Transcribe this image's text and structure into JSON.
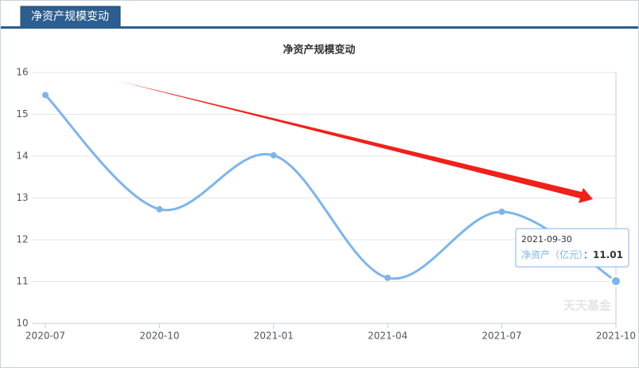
{
  "tab": "净资产规模变动",
  "watermark": "天天基金",
  "chart_data": {
    "type": "line",
    "title": "净资产规模变动",
    "categories": [
      "2020-07",
      "2020-10",
      "2021-01",
      "2021-04",
      "2021-07",
      "2021-10"
    ],
    "series": [
      {
        "name": "净资产（亿元）",
        "color": "#7cb5ec",
        "values": [
          15.46,
          12.73,
          14.02,
          11.09,
          12.67,
          11.01
        ]
      }
    ],
    "ylim": [
      10,
      16
    ],
    "yticks": [
      10,
      11,
      12,
      13,
      14,
      15,
      16
    ],
    "grid": true,
    "tooltip": {
      "x": "2021-09-30",
      "separator": "：",
      "point": 5
    }
  }
}
